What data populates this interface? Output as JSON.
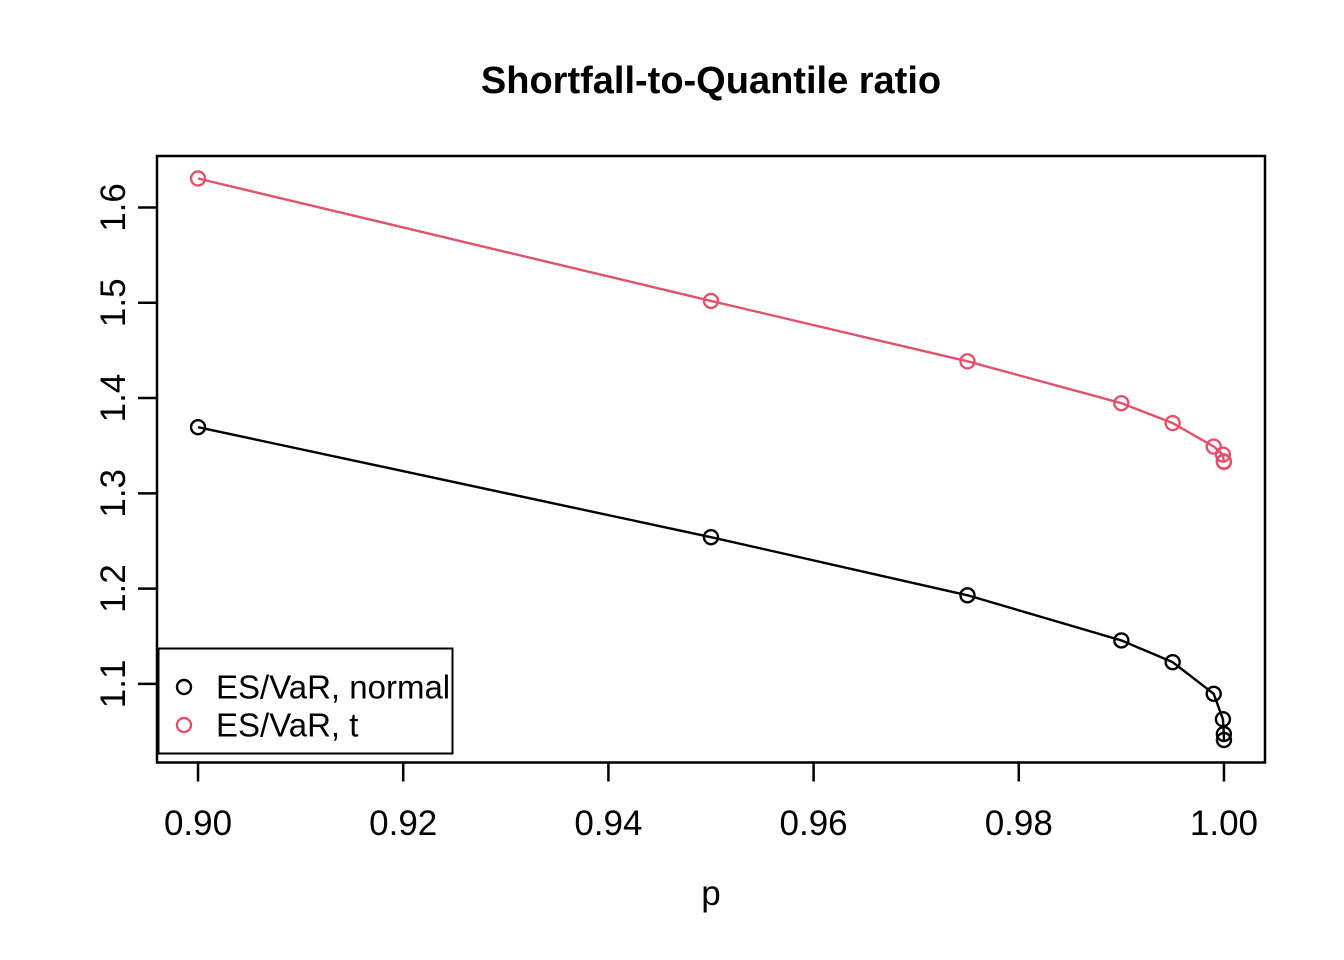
{
  "chart_data": {
    "type": "line",
    "title": "Shortfall-to-Quantile ratio",
    "xlabel": "p",
    "ylabel": "",
    "x": [
      0.9,
      0.95,
      0.975,
      0.99,
      0.995,
      0.999,
      0.9999,
      0.99999,
      0.999999
    ],
    "series": [
      {
        "name": "ES/VaR, normal",
        "color": "#000000",
        "values": [
          1.3694,
          1.254,
          1.193,
          1.1456,
          1.1228,
          1.0896,
          1.0629,
          1.0474,
          1.0411
        ]
      },
      {
        "name": "ES/VaR, t",
        "color": "#DF536B",
        "values": [
          1.6304,
          1.5019,
          1.4385,
          1.3946,
          1.3737,
          1.3491,
          1.3407,
          1.3334,
          1.3329
        ]
      }
    ],
    "xticks": [
      0.9,
      0.92,
      0.94,
      0.96,
      0.98,
      1.0
    ],
    "xtick_labels": [
      "0.90",
      "0.92",
      "0.94",
      "0.96",
      "0.98",
      "1.00"
    ],
    "yticks": [
      1.1,
      1.2,
      1.3,
      1.4,
      1.5,
      1.6
    ],
    "ytick_labels": [
      "1.1",
      "1.2",
      "1.3",
      "1.4",
      "1.5",
      "1.6"
    ],
    "xlim": [
      0.896,
      1.004
    ],
    "ylim": [
      1.0175,
      1.654
    ],
    "grid": false,
    "marker": "open-circle",
    "legend_position": "bottom-left",
    "background_color": "#ffffff",
    "axis_color": "#000000"
  }
}
